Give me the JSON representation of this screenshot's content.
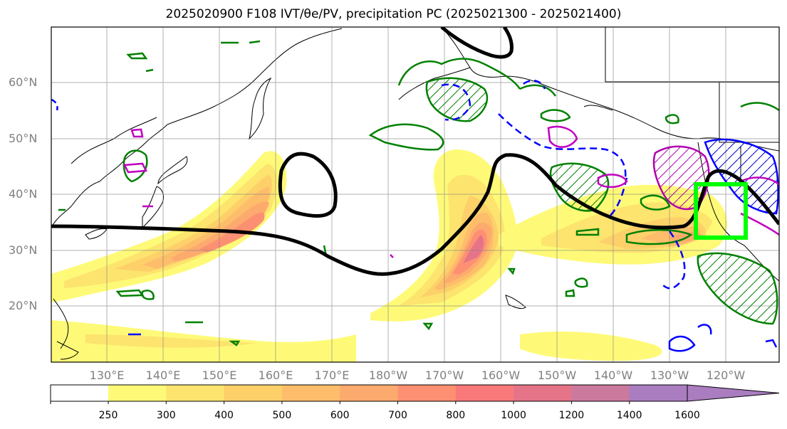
{
  "title": "2025020900 F108 IVT/θe/PV, precipitation PC (2025021300 - 2025021400)",
  "lat_labels": [
    "60°N",
    "50°N",
    "40°N",
    "30°N",
    "20°N"
  ],
  "lon_labels": [
    "130°E",
    "140°E",
    "150°E",
    "160°E",
    "170°E",
    "180°W",
    "170°W",
    "160°W",
    "150°W",
    "140°W",
    "130°W",
    "120°W"
  ],
  "colorbar": {
    "ticks": [
      "250",
      "300",
      "400",
      "500",
      "600",
      "700",
      "800",
      "1000",
      "1200",
      "1400",
      "1600"
    ],
    "colors": [
      "#fefa78",
      "#fde46e",
      "#fdd06a",
      "#fdbd6a",
      "#fdaa6e",
      "#fd9072",
      "#f9797a",
      "#e67488",
      "#cb7a9e",
      "#aa7dc0"
    ]
  },
  "highlight_box_color": "#00ff00",
  "contour_colors": {
    "theta_e": "#000000",
    "pv_positive": "#008000",
    "pv_blue": "#0000ff",
    "pv_magenta": "#c000c0"
  }
}
